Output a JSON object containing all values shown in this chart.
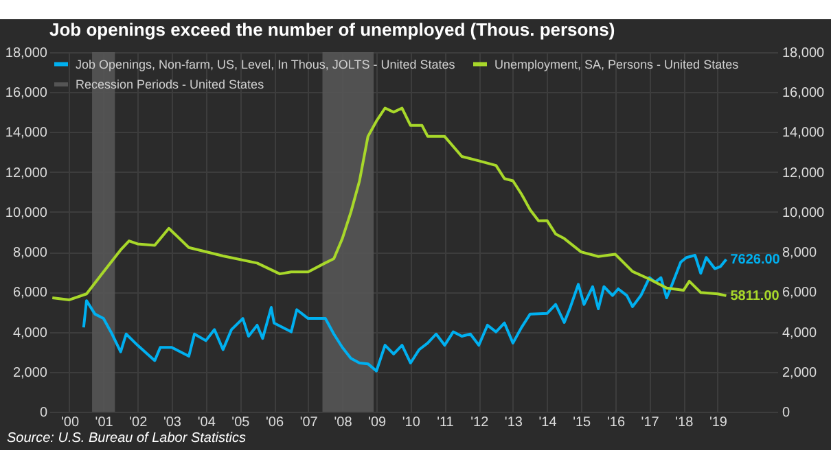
{
  "chart_data": {
    "type": "line",
    "title": "Job openings exceed the number of unemployed (Thous. persons)",
    "annotations": [
      "Source: U.S. Bureau of Labor Statistics"
    ],
    "xlim": [
      "1999-12",
      "2021-04"
    ],
    "xticks": [
      {
        "value": "2000-07",
        "label": "'00"
      },
      {
        "value": "2001-07",
        "label": "'01"
      },
      {
        "value": "2002-07",
        "label": "'02"
      },
      {
        "value": "2003-07",
        "label": "'03"
      },
      {
        "value": "2004-07",
        "label": "'04"
      },
      {
        "value": "2005-07",
        "label": "'05"
      },
      {
        "value": "2006-07",
        "label": "'06"
      },
      {
        "value": "2007-07",
        "label": "'07"
      },
      {
        "value": "2008-07",
        "label": "'08"
      },
      {
        "value": "2009-07",
        "label": "'09"
      },
      {
        "value": "2010-07",
        "label": "'10"
      },
      {
        "value": "2011-07",
        "label": "'11"
      },
      {
        "value": "2012-07",
        "label": "'12"
      },
      {
        "value": "2013-07",
        "label": "'13"
      },
      {
        "value": "2014-07",
        "label": "'14"
      },
      {
        "value": "2015-07",
        "label": "'15"
      },
      {
        "value": "2016-07",
        "label": "'16"
      },
      {
        "value": "2017-07",
        "label": "'17"
      },
      {
        "value": "2018-07",
        "label": "'18"
      },
      {
        "value": "2019-07",
        "label": "'19"
      }
    ],
    "ylim": [
      0,
      18000
    ],
    "yticks": [
      0,
      {
        "value": 2000,
        "label": "2,000"
      },
      {
        "value": 4000,
        "label": "4,000"
      },
      {
        "value": 6000,
        "label": "6,000"
      },
      {
        "value": 8000,
        "label": "8,000"
      },
      {
        "value": 10000,
        "label": "10,000"
      },
      {
        "value": 12000,
        "label": "12,000"
      },
      {
        "value": 14000,
        "label": "14,000"
      },
      {
        "value": 16000,
        "label": "16,000"
      },
      {
        "value": 18000,
        "label": "18,000"
      }
    ],
    "y2lim": [
      0,
      18000
    ],
    "y2ticks": [
      0,
      {
        "value": 2000,
        "label": "2,000"
      },
      {
        "value": 4000,
        "label": "4,000"
      },
      {
        "value": 6000,
        "label": "6,000"
      },
      {
        "value": 8000,
        "label": "8,000"
      },
      {
        "value": 10000,
        "label": "10,000"
      },
      {
        "value": 12000,
        "label": "12,000"
      },
      {
        "value": 14000,
        "label": "14,000"
      },
      {
        "value": 16000,
        "label": "16,000"
      },
      {
        "value": 18000,
        "label": "18,000"
      }
    ],
    "grid": true,
    "legend": "top left",
    "bands": [
      {
        "axis": "x",
        "from": "2001-03",
        "to": "2001-11",
        "label": "Recession Periods - United States",
        "color": "#555555"
      },
      {
        "axis": "x",
        "from": "2007-12",
        "to": "2009-06",
        "color": "#555555"
      }
    ],
    "series": [
      {
        "name": "Job Openings, Non-farm, US, Level, In Thous, JOLTS - United States",
        "color": "#00b0f0",
        "x": [
          "2000-12",
          "2001-01",
          "2001-04",
          "2001-07",
          "2001-10",
          "2002-01",
          "2002-03",
          "2002-07",
          "2003-01",
          "2003-03",
          "2003-07",
          "2004-01",
          "2004-03",
          "2004-07",
          "2004-10",
          "2005-01",
          "2005-04",
          "2005-08",
          "2005-10",
          "2006-01",
          "2006-03",
          "2006-06",
          "2006-07",
          "2007-01",
          "2007-03",
          "2007-07",
          "2007-10",
          "2008-01",
          "2008-04",
          "2008-07",
          "2008-10",
          "2009-01",
          "2009-04",
          "2009-07",
          "2009-10",
          "2010-01",
          "2010-04",
          "2010-07",
          "2010-10",
          "2011-01",
          "2011-04",
          "2011-07",
          "2011-10",
          "2012-01",
          "2012-04",
          "2012-07",
          "2012-10",
          "2013-01",
          "2013-04",
          "2013-07",
          "2013-10",
          "2014-01",
          "2014-07",
          "2014-10",
          "2015-01",
          "2015-03",
          "2015-06",
          "2015-08",
          "2015-11",
          "2016-01",
          "2016-03",
          "2016-06",
          "2016-08",
          "2016-11",
          "2017-01",
          "2017-04",
          "2017-07",
          "2017-09",
          "2017-11",
          "2018-01",
          "2018-03",
          "2018-06",
          "2018-08",
          "2018-11",
          "2019-01",
          "2019-03",
          "2019-06",
          "2019-08",
          "2019-10"
        ],
        "values": [
          4220,
          5560,
          4890,
          4670,
          3890,
          3000,
          3890,
          3330,
          2560,
          3220,
          3220,
          2780,
          3890,
          3560,
          4110,
          3110,
          4110,
          4670,
          3780,
          4330,
          3670,
          5220,
          4440,
          4000,
          5110,
          4670,
          4670,
          4670,
          3890,
          3220,
          2670,
          2440,
          2400,
          2040,
          3330,
          2890,
          3330,
          2440,
          3110,
          3440,
          3890,
          3330,
          4000,
          3780,
          3890,
          3330,
          4330,
          4000,
          4440,
          3440,
          4220,
          4890,
          4920,
          5370,
          4470,
          5150,
          6380,
          5370,
          6260,
          5150,
          6260,
          5820,
          6150,
          5820,
          5260,
          5820,
          6710,
          6490,
          6710,
          5700,
          6380,
          7490,
          7720,
          7830,
          6930,
          7720,
          7160,
          7270,
          7626
        ],
        "value_labels": [
          null,
          null,
          null,
          null,
          null,
          null,
          null,
          null,
          null,
          null,
          null,
          null,
          null,
          null,
          null,
          null,
          null,
          null,
          null,
          null,
          null,
          null,
          null,
          null,
          null,
          null,
          null,
          null,
          null,
          null,
          null,
          null,
          null,
          null,
          null,
          null,
          null,
          null,
          null,
          null,
          null,
          null,
          null,
          null,
          null,
          null,
          null,
          null,
          null,
          null,
          null,
          null,
          null,
          null,
          null,
          null,
          null,
          null,
          null,
          null,
          null,
          null,
          null,
          null,
          null,
          null,
          null,
          null,
          null,
          null,
          null,
          null,
          null,
          null,
          null,
          null,
          null,
          null,
          "7626.00"
        ]
      },
      {
        "name": "Unemployment, SA, Persons - United States",
        "color": "#a8d82a",
        "x": [
          "2000-01",
          "2000-07",
          "2001-01",
          "2001-07",
          "2002-01",
          "2002-04",
          "2002-07",
          "2003-01",
          "2003-06",
          "2004-01",
          "2005-01",
          "2006-01",
          "2006-09",
          "2007-01",
          "2007-07",
          "2008-01",
          "2008-04",
          "2008-07",
          "2008-10",
          "2009-01",
          "2009-04",
          "2009-07",
          "2009-10",
          "2010-01",
          "2010-04",
          "2010-07",
          "2010-11",
          "2011-01",
          "2011-07",
          "2012-01",
          "2012-07",
          "2013-01",
          "2013-04",
          "2013-07",
          "2013-10",
          "2014-01",
          "2014-04",
          "2014-07",
          "2014-10",
          "2015-01",
          "2015-07",
          "2016-01",
          "2016-07",
          "2017-01",
          "2017-07",
          "2018-01",
          "2018-07",
          "2018-09",
          "2019-01",
          "2019-07",
          "2019-10"
        ],
        "values": [
          5700,
          5600,
          5900,
          7000,
          8100,
          8550,
          8400,
          8330,
          9180,
          8220,
          7800,
          7440,
          6900,
          7000,
          7000,
          7450,
          7660,
          8670,
          10000,
          11560,
          13780,
          14550,
          15200,
          15000,
          15200,
          14330,
          14330,
          13780,
          13780,
          12780,
          12560,
          12330,
          11670,
          11560,
          10890,
          10110,
          9560,
          9570,
          8900,
          8670,
          8000,
          7770,
          7880,
          7020,
          6640,
          6190,
          6080,
          6530,
          5970,
          5900,
          5811
        ],
        "value_labels": [
          null,
          null,
          null,
          null,
          null,
          null,
          null,
          null,
          null,
          null,
          null,
          null,
          null,
          null,
          null,
          null,
          null,
          null,
          null,
          null,
          null,
          null,
          null,
          null,
          null,
          null,
          null,
          null,
          null,
          null,
          null,
          null,
          null,
          null,
          null,
          null,
          null,
          null,
          null,
          null,
          null,
          null,
          null,
          null,
          null,
          null,
          null,
          null,
          null,
          null,
          "5811.00"
        ]
      }
    ]
  }
}
